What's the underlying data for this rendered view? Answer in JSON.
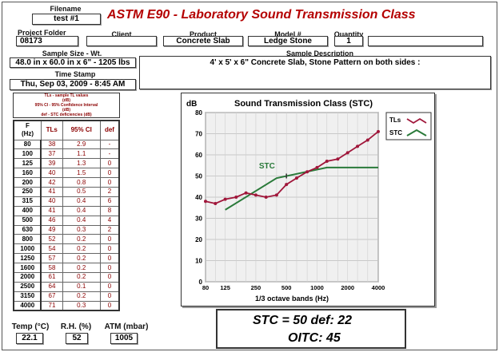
{
  "header": {
    "title": "ASTM E90 - Laboratory Sound Transmission Class",
    "filename_label": "Filename",
    "filename": "test #1"
  },
  "fields": {
    "project_folder_label": "Project Folder",
    "project_folder": "08173",
    "client_label": "Client",
    "client": "",
    "product_label": "Product",
    "product": "Concrete Slab",
    "model_label": "Model #",
    "model": "Ledge Stone",
    "quantity_label": "Quantity",
    "quantity": "1",
    "extra": "",
    "sample_size_label": "Sample Size - Wt.",
    "sample_size": "48.0 in x 60.0 in x 6\"  -  1205 lbs",
    "sample_desc_label": "Sample Description",
    "sample_desc": "4' x 5' x 6\" Concrete Slab,  Stone Pattern  on both sides     :",
    "timestamp_label": "Time Stamp",
    "timestamp": "Thu, Sep 03, 2009 - 8:45 AM"
  },
  "legend_notes": [
    "TLs - sample TL values",
    "(dB)",
    "95% CI - 95% Confidence Interval",
    "(dB)",
    "def - STC deficiencies (dB)"
  ],
  "table": {
    "headers": [
      "F\n(Hz)",
      "TLs",
      "95% CI",
      "def"
    ],
    "rows": [
      [
        "80",
        "38",
        "2.9",
        "-"
      ],
      [
        "100",
        "37",
        "1.1",
        "-"
      ],
      [
        "125",
        "39",
        "1.3",
        "0"
      ],
      [
        "160",
        "40",
        "1.5",
        "0"
      ],
      [
        "200",
        "42",
        "0.8",
        "0"
      ],
      [
        "250",
        "41",
        "0.5",
        "2"
      ],
      [
        "315",
        "40",
        "0.4",
        "6"
      ],
      [
        "400",
        "41",
        "0.4",
        "8"
      ],
      [
        "500",
        "46",
        "0.4",
        "4"
      ],
      [
        "630",
        "49",
        "0.3",
        "2"
      ],
      [
        "800",
        "52",
        "0.2",
        "0"
      ],
      [
        "1000",
        "54",
        "0.2",
        "0"
      ],
      [
        "1250",
        "57",
        "0.2",
        "0"
      ],
      [
        "1600",
        "58",
        "0.2",
        "0"
      ],
      [
        "2000",
        "61",
        "0.2",
        "0"
      ],
      [
        "2500",
        "64",
        "0.1",
        "0"
      ],
      [
        "3150",
        "67",
        "0.2",
        "0"
      ],
      [
        "4000",
        "71",
        "0.3",
        "0"
      ]
    ]
  },
  "environment": {
    "temp_label": "Temp (°C)",
    "temp": "22.1",
    "rh_label": "R.H. (%)",
    "rh": "52",
    "atm_label": "ATM (mbar)",
    "atm": "1005"
  },
  "result": {
    "stc_line": "STC = 50  def: 22",
    "oitc_line": "OITC:  45"
  },
  "chart_data": {
    "type": "line",
    "title": "Sound Transmission Class (STC)",
    "ylabel": "dB",
    "xlabel": "1/3 octave bands (Hz)",
    "ylim": [
      0,
      80
    ],
    "yticks": [
      "0",
      "10",
      "20",
      "30",
      "40",
      "50",
      "60",
      "70",
      "80"
    ],
    "xticks": [
      "80",
      "125",
      "250",
      "500",
      "1000",
      "2000",
      "4000"
    ],
    "x": [
      80,
      100,
      125,
      160,
      200,
      250,
      315,
      400,
      500,
      630,
      800,
      1000,
      1250,
      1600,
      2000,
      2500,
      3150,
      4000
    ],
    "grid": true,
    "legend_placement": "right",
    "annotation": "STC",
    "colors": {
      "tls": "#a0163a",
      "stc": "#2a7a3a",
      "plot_bg": "#f0f0f0"
    },
    "series": [
      {
        "name": "TLs",
        "x": [
          80,
          100,
          125,
          160,
          200,
          250,
          315,
          400,
          500,
          630,
          800,
          1000,
          1250,
          1600,
          2000,
          2500,
          3150,
          4000
        ],
        "values": [
          38,
          37,
          39,
          40,
          42,
          41,
          40,
          41,
          46,
          49,
          52,
          54,
          57,
          58,
          61,
          64,
          67,
          71
        ]
      },
      {
        "name": "STC",
        "x": [
          125,
          400,
          1250,
          4000
        ],
        "values": [
          34,
          49,
          54,
          54
        ]
      }
    ]
  }
}
